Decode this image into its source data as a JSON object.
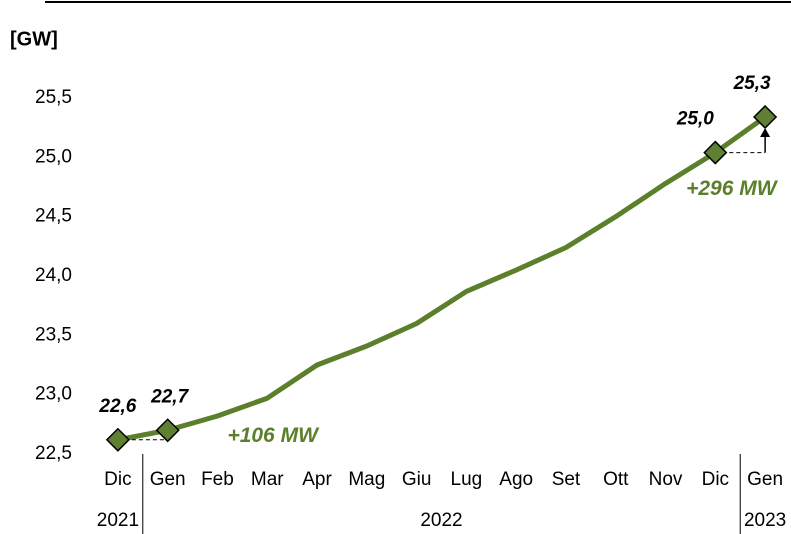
{
  "chart_data": {
    "type": "line",
    "y_label": "[GW]",
    "categories": [
      "Dic",
      "Gen",
      "Feb",
      "Mar",
      "Apr",
      "Mag",
      "Giu",
      "Lug",
      "Ago",
      "Set",
      "Ott",
      "Nov",
      "Dic",
      "Gen"
    ],
    "year_groups": [
      {
        "label": "2021",
        "from": 0,
        "to": 0
      },
      {
        "label": "2022",
        "from": 1,
        "to": 12
      },
      {
        "label": "2023",
        "from": 13,
        "to": 13
      }
    ],
    "values": [
      22.62,
      22.7,
      22.82,
      22.97,
      23.25,
      23.41,
      23.6,
      23.87,
      24.05,
      24.24,
      24.5,
      24.78,
      25.04,
      25.34
    ],
    "value_labels": [
      "22,6",
      "22,7",
      null,
      null,
      null,
      null,
      null,
      null,
      null,
      null,
      null,
      null,
      "25,0",
      "25,3"
    ],
    "color": "#5b7f2a",
    "marker_color": "#5f8032",
    "annotations": [
      "+106 MW",
      "+296 MW"
    ],
    "ylim": [
      22.5,
      25.5
    ],
    "yticks": [
      {
        "value": 22.5,
        "label": "22,5"
      },
      {
        "value": 23.0,
        "label": "23,0"
      },
      {
        "value": 23.5,
        "label": "23,5"
      },
      {
        "value": 24.0,
        "label": "24,0"
      },
      {
        "value": 24.5,
        "label": "24,5"
      },
      {
        "value": 25.0,
        "label": "25,0"
      },
      {
        "value": 25.5,
        "label": "25,5"
      }
    ]
  }
}
